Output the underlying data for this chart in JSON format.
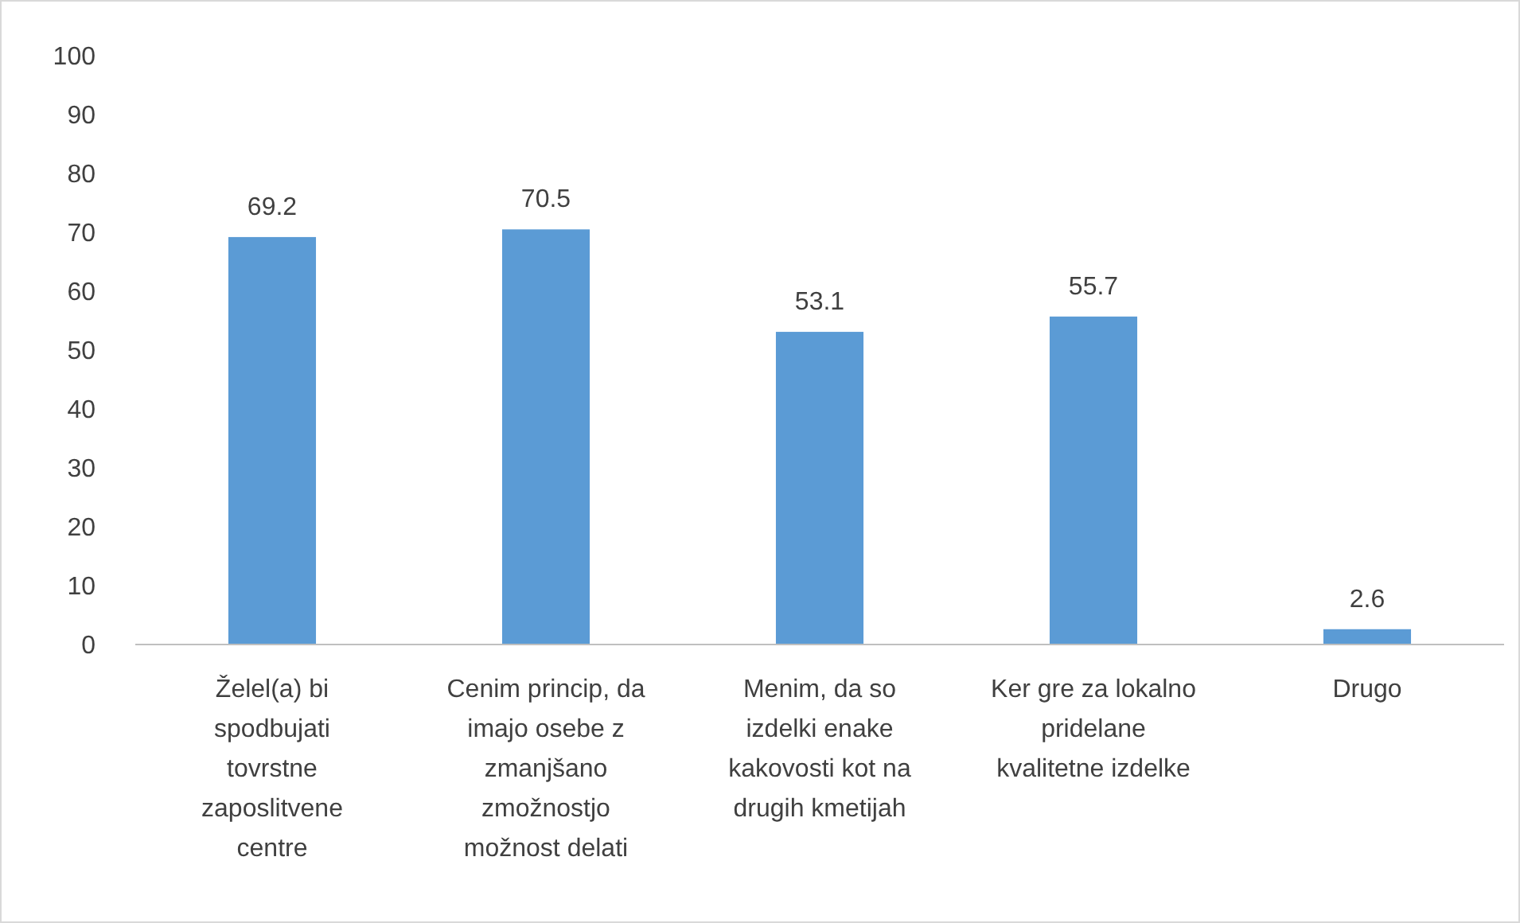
{
  "chart_data": {
    "type": "bar",
    "categories": [
      "Želel(a) bi spodbujati tovrstne zaposlitvene centre",
      "Cenim princip, da imajo osebe z zmanjšano zmožnostjo možnost delati",
      "Menim, da so izdelki enake kakovosti kot na drugih kmetijah",
      "Ker gre za lokalno pridelane kvalitetne izdelke",
      "Drugo"
    ],
    "values": [
      69.2,
      70.5,
      53.1,
      55.7,
      2.6
    ],
    "color": "#5b9bd5",
    "data_labels": true,
    "ylim": [
      0,
      100
    ],
    "yticks": [
      0,
      10,
      20,
      30,
      40,
      50,
      60,
      70,
      80,
      90,
      100
    ],
    "grid": false
  }
}
